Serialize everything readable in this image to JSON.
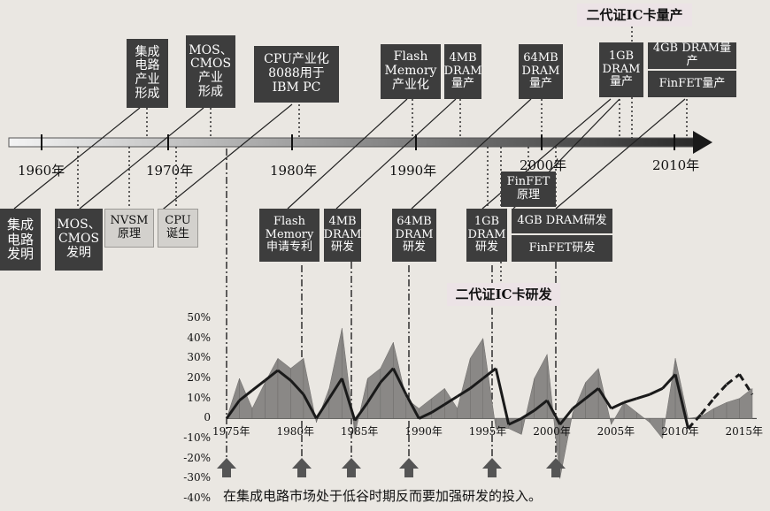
{
  "timeline": {
    "years": [
      "1960年",
      "1970年",
      "1980年",
      "1990年",
      "2000年",
      "2010年"
    ]
  },
  "top_events": [
    {
      "label": "集成\n电路\n产业\n形成"
    },
    {
      "label": "MOS、\nCMOS\n产业\n形成"
    },
    {
      "label": "CPU产业化\n8088用于\nIBM PC"
    },
    {
      "label": "Flash\nMemory\n产业化"
    },
    {
      "label": "4MB\nDRAM\n量产"
    },
    {
      "label": "64MB\nDRAM\n量产"
    },
    {
      "label": "1GB\nDRAM\n量产"
    },
    {
      "label": "4GB DRAM量产"
    },
    {
      "label": "FinFET量产"
    }
  ],
  "top_highlight": "二代证IC卡量产",
  "bottom_events": [
    {
      "label": "集成\n电路\n发明"
    },
    {
      "label": "MOS、\nCMOS\n发明"
    },
    {
      "label": "NVSM\n原理"
    },
    {
      "label": "CPU\n诞生"
    },
    {
      "label": "Flash\nMemory\n申请专利"
    },
    {
      "label": "4MB\nDRAM\n研发"
    },
    {
      "label": "64MB\nDRAM\n研发"
    },
    {
      "label": "1GB\nDRAM\n研发"
    },
    {
      "label": "FinFET\n原理"
    },
    {
      "label": "4GB DRAM研发"
    },
    {
      "label": "FinFET研发"
    }
  ],
  "bottom_highlight": "二代证IC卡研发",
  "chart_data": {
    "type": "area",
    "x": [
      1975,
      1976,
      1977,
      1978,
      1979,
      1980,
      1981,
      1982,
      1983,
      1984,
      1985,
      1986,
      1987,
      1988,
      1989,
      1990,
      1991,
      1992,
      1993,
      1994,
      1995,
      1996,
      1997,
      1998,
      1999,
      2000,
      2001,
      2002,
      2003,
      2004,
      2005,
      2006,
      2007,
      2008,
      2009,
      2010,
      2011,
      2012,
      2013,
      2014,
      2015,
      2016
    ],
    "series": [
      {
        "style": "area",
        "values": [
          0,
          20,
          5,
          18,
          30,
          25,
          30,
          -2,
          15,
          45,
          -8,
          20,
          25,
          38,
          10,
          5,
          10,
          15,
          5,
          30,
          40,
          -5,
          -5,
          -8,
          20,
          32,
          -30,
          3,
          18,
          25,
          -3,
          8,
          3,
          -2,
          -10,
          30,
          0,
          1,
          5,
          8,
          10,
          15
        ]
      },
      {
        "style": "line",
        "values": [
          0,
          9,
          14,
          19,
          24,
          19,
          12,
          0,
          10,
          20,
          -1,
          8,
          18,
          25,
          12,
          0,
          3,
          7,
          11,
          15,
          20,
          25,
          -3,
          0,
          4,
          9,
          -3,
          5,
          10,
          15,
          5,
          8,
          10,
          12,
          15,
          22,
          -5,
          2,
          10,
          17,
          22,
          12
        ]
      }
    ],
    "yticks": [
      "50%",
      "40%",
      "30%",
      "20%",
      "10%",
      "0",
      "-10%",
      "-20%",
      "-30%",
      "-40%"
    ],
    "xticks": [
      "1975年",
      "1980年",
      "1985年",
      "1990年",
      "1995年",
      "2000年",
      "2005年",
      "2010年",
      "2015年"
    ],
    "ylim": [
      -40,
      50
    ],
    "annotation": "在集成电路市场处于低谷时期反而要加强研发的投入。"
  }
}
